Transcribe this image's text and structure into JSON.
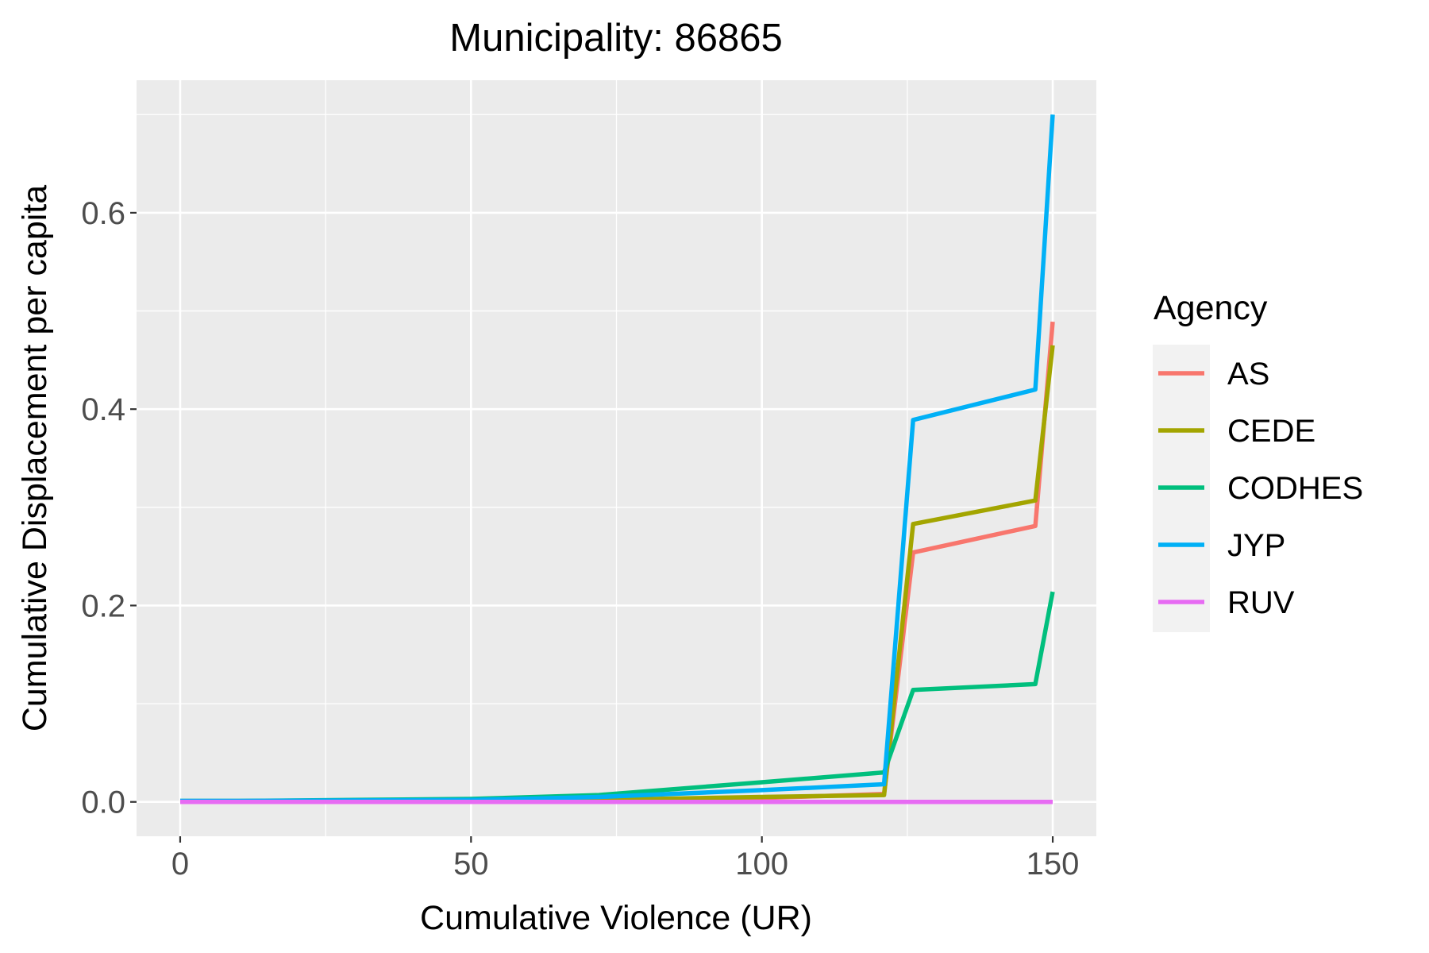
{
  "chart_data": {
    "type": "line",
    "title": "Municipality: 86865",
    "xlabel": "Cumulative Violence (UR)",
    "ylabel": "Cumulative Displacement per capita",
    "xlim": [
      -7.5,
      157.5
    ],
    "ylim": [
      -0.035,
      0.735
    ],
    "x_ticks": [
      0,
      50,
      100,
      150
    ],
    "x_tick_labels": [
      "0",
      "50",
      "100",
      "150"
    ],
    "y_ticks": [
      0.0,
      0.2,
      0.4,
      0.6
    ],
    "y_tick_labels": [
      "0.0",
      "0.2",
      "0.4",
      "0.6"
    ],
    "grid": true,
    "legend": {
      "title": "Agency",
      "position": "right"
    },
    "series": [
      {
        "name": "AS",
        "color": "#F8766D",
        "x": [
          0,
          10,
          30,
          50,
          72,
          100,
          121,
          126,
          147,
          150
        ],
        "y": [
          0.0,
          0.0005,
          0.001,
          0.0015,
          0.002,
          0.004,
          0.008,
          0.254,
          0.281,
          0.489
        ]
      },
      {
        "name": "CEDE",
        "color": "#A3A500",
        "x": [
          0,
          10,
          30,
          50,
          72,
          100,
          121,
          126,
          147,
          150
        ],
        "y": [
          0.0,
          0.0005,
          0.001,
          0.0015,
          0.002,
          0.005,
          0.007,
          0.283,
          0.307,
          0.465
        ]
      },
      {
        "name": "CODHES",
        "color": "#00BF7D",
        "x": [
          0,
          10,
          30,
          50,
          72,
          100,
          121,
          126,
          147,
          150
        ],
        "y": [
          0.001,
          0.001,
          0.002,
          0.003,
          0.007,
          0.02,
          0.03,
          0.114,
          0.12,
          0.214
        ]
      },
      {
        "name": "JYP",
        "color": "#00B0F6",
        "x": [
          0,
          10,
          30,
          50,
          72,
          100,
          121,
          126,
          147,
          150
        ],
        "y": [
          0.001,
          0.001,
          0.0015,
          0.002,
          0.005,
          0.012,
          0.018,
          0.389,
          0.42,
          0.7
        ]
      },
      {
        "name": "RUV",
        "color": "#E76BF3",
        "x": [
          0,
          150
        ],
        "y": [
          0.0,
          0.0
        ]
      }
    ]
  }
}
